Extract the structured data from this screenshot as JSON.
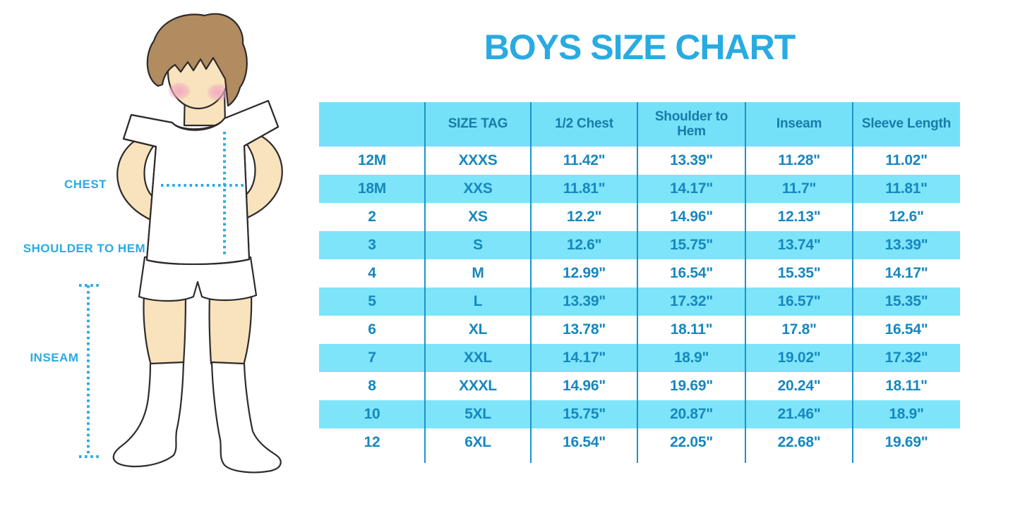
{
  "title": "BOYS SIZE CHART",
  "colors": {
    "accent": "#29ABE2",
    "header_bg": "#74E1F9",
    "stripe_bg": "#7DE4FA",
    "header_text": "#177CA9",
    "cell_text": "#1787BE",
    "divider": "#1C93C9",
    "skin": "#F8E3BD",
    "hair": "#B18C60",
    "blush": "#F2A9C0",
    "outline": "#2F2A2B",
    "garment": "#FFFFFF"
  },
  "figure": {
    "description": "cartoon boy wearing white t-shirt, shorts and knee socks with dotted measurement guides",
    "labels": {
      "chest": "CHEST",
      "shoulder_to_hem": "SHOULDER TO HEM",
      "inseam": "INSEAM"
    }
  },
  "chart_data": {
    "type": "table",
    "title": "BOYS SIZE CHART",
    "columns": [
      "",
      "SIZE TAG",
      "1/2 Chest",
      "Shoulder to Hem",
      "Inseam",
      "Sleeve Length"
    ],
    "rows": [
      [
        "12M",
        "XXXS",
        "11.42\"",
        "13.39\"",
        "11.28\"",
        "11.02\""
      ],
      [
        "18M",
        "XXS",
        "11.81\"",
        "14.17\"",
        "11.7\"",
        "11.81\""
      ],
      [
        "2",
        "XS",
        "12.2\"",
        "14.96\"",
        "12.13\"",
        "12.6\""
      ],
      [
        "3",
        "S",
        "12.6\"",
        "15.75\"",
        "13.74\"",
        "13.39\""
      ],
      [
        "4",
        "M",
        "12.99\"",
        "16.54\"",
        "15.35\"",
        "14.17\""
      ],
      [
        "5",
        "L",
        "13.39\"",
        "17.32\"",
        "16.57\"",
        "15.35\""
      ],
      [
        "6",
        "XL",
        "13.78\"",
        "18.11\"",
        "17.8\"",
        "16.54\""
      ],
      [
        "7",
        "XXL",
        "14.17\"",
        "18.9\"",
        "19.02\"",
        "17.32\""
      ],
      [
        "8",
        "XXXL",
        "14.96\"",
        "19.69\"",
        "20.24\"",
        "18.11\""
      ],
      [
        "10",
        "5XL",
        "15.75\"",
        "20.87\"",
        "21.46\"",
        "18.9\""
      ],
      [
        "12",
        "6XL",
        "16.54\"",
        "22.05\"",
        "22.68\"",
        "19.69\""
      ]
    ],
    "layout": {
      "striped": true,
      "stripe_pattern": "alternate data rows shaded light cyan starting with 2nd row (18M)",
      "header_shaded": true,
      "column_dividers": true
    }
  }
}
